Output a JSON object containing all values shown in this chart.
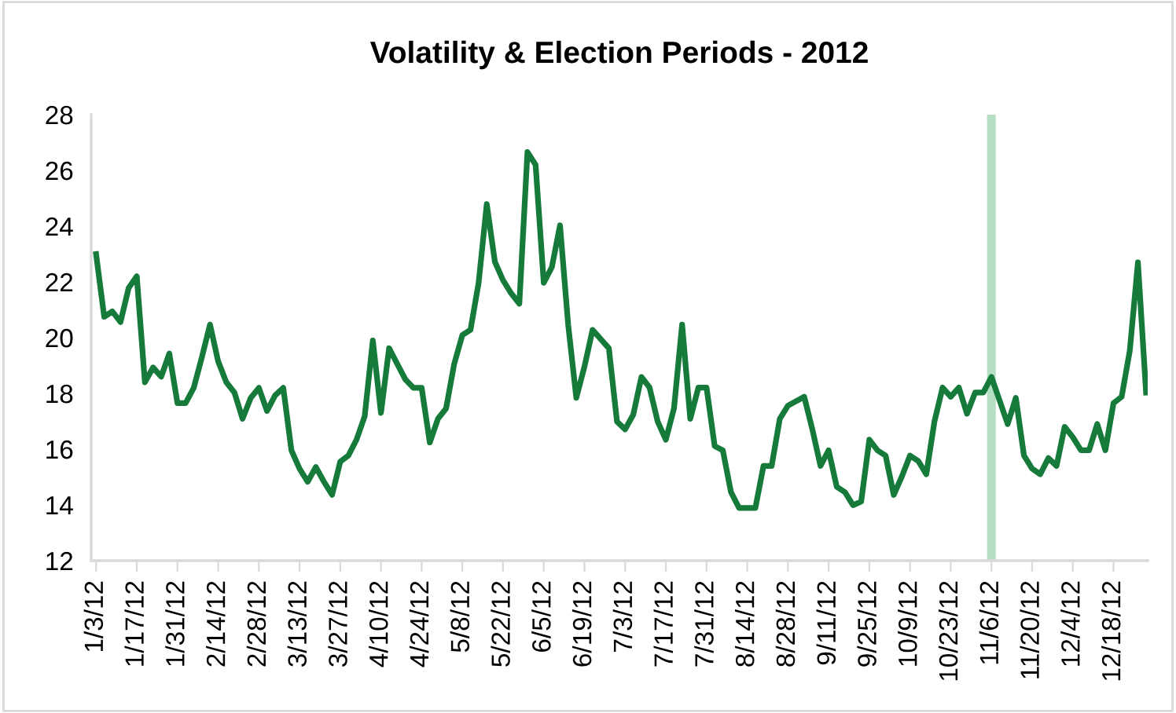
{
  "chart_data": {
    "type": "line",
    "title": "Volatility & Election Periods - 2012",
    "categories": [
      "1/3/12",
      null,
      null,
      null,
      null,
      "1/17/12",
      null,
      null,
      null,
      null,
      "1/31/12",
      null,
      null,
      null,
      null,
      "2/14/12",
      null,
      null,
      null,
      null,
      "2/28/12",
      null,
      null,
      null,
      null,
      "3/13/12",
      null,
      null,
      null,
      null,
      "3/27/12",
      null,
      null,
      null,
      null,
      "4/10/12",
      null,
      null,
      null,
      null,
      "4/24/12",
      null,
      null,
      null,
      null,
      "5/8/12",
      null,
      null,
      null,
      null,
      "5/22/12",
      null,
      null,
      null,
      null,
      "6/5/12",
      null,
      null,
      null,
      null,
      "6/19/12",
      null,
      null,
      null,
      null,
      "7/3/12",
      null,
      null,
      null,
      null,
      "7/17/12",
      null,
      null,
      null,
      null,
      "7/31/12",
      null,
      null,
      null,
      null,
      "8/14/12",
      null,
      null,
      null,
      null,
      "8/28/12",
      null,
      null,
      null,
      null,
      "9/11/12",
      null,
      null,
      null,
      null,
      "9/25/12",
      null,
      null,
      null,
      null,
      "10/9/12",
      null,
      null,
      null,
      null,
      "10/23/12",
      null,
      null,
      null,
      null,
      "11/6/12",
      null,
      null,
      null,
      null,
      "11/20/12",
      null,
      null,
      null,
      null,
      "12/4/12",
      null,
      null,
      null,
      null,
      "12/18/12",
      null,
      null,
      null,
      null
    ],
    "series": [
      {
        "color": "#157a3a",
        "values": [
          23.0,
          20.75,
          20.94,
          20.56,
          21.78,
          22.2,
          18.4,
          18.93,
          18.6,
          19.43,
          17.65,
          17.65,
          18.2,
          19.3,
          20.47,
          19.15,
          18.4,
          18.03,
          17.09,
          17.84,
          18.2,
          17.37,
          17.93,
          18.2,
          15.96,
          15.3,
          14.83,
          15.36,
          14.83,
          14.36,
          15.55,
          15.77,
          16.34,
          17.18,
          19.9,
          17.3,
          19.62,
          19.06,
          18.5,
          18.2,
          18.2,
          16.24,
          17.09,
          17.46,
          19.06,
          20.09,
          20.28,
          21.97,
          24.79,
          22.72,
          22.06,
          21.59,
          21.22,
          26.66,
          26.2,
          21.97,
          22.53,
          24.03,
          20.47,
          17.84,
          18.96,
          20.28,
          19.95,
          19.62,
          16.99,
          16.71,
          17.24,
          18.59,
          18.21,
          16.99,
          16.34,
          17.46,
          20.47,
          17.09,
          18.21,
          18.21,
          16.11,
          15.96,
          14.46,
          13.89,
          13.89,
          13.89,
          15.4,
          15.4,
          17.09,
          17.56,
          17.72,
          17.88,
          16.71,
          15.4,
          15.96,
          14.65,
          14.46,
          13.99,
          14.12,
          16.34,
          15.96,
          15.77,
          14.36,
          15.02,
          15.77,
          15.58,
          15.1,
          16.99,
          18.21,
          17.88,
          18.21,
          17.27,
          18.03,
          18.03,
          18.59,
          17.75,
          16.9,
          17.84,
          15.77,
          15.3,
          15.1,
          15.68,
          15.4,
          16.8,
          16.43,
          15.96,
          15.96,
          16.9,
          15.96,
          17.65,
          17.88,
          19.53,
          22.7,
          18.03
        ]
      }
    ],
    "ylim": [
      12,
      28
    ],
    "yticks": [
      12,
      14,
      16,
      18,
      20,
      22,
      24,
      26,
      28
    ],
    "ref_lines": [
      {
        "axis": "x",
        "value": "11/6/12",
        "color": "#b5dfc2"
      }
    ],
    "grid": false,
    "marker": "none",
    "line_style": "solid"
  }
}
